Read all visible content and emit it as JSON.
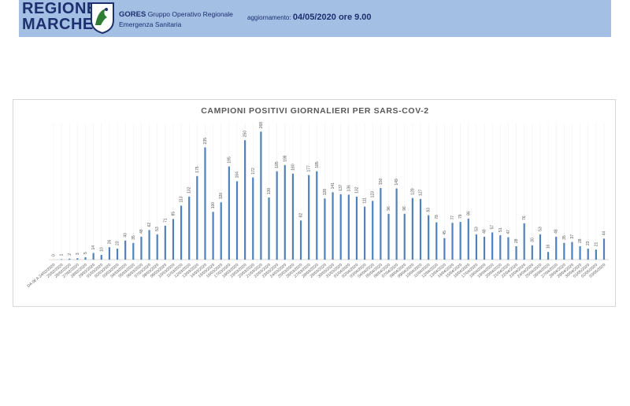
{
  "header": {
    "logo_line1": "REGIONE",
    "logo_line2": "MARCHE",
    "org_short": "GORES",
    "org_line1": "Gruppo Operativo Regionale",
    "org_line2": "Emergenza Sanitaria",
    "update_label": "aggiornamento:",
    "update_value": "04/05/2020 ore 9.00"
  },
  "colors": {
    "bar": "#4f81bd",
    "header_bg": "#a3bfe4",
    "logo": "#1d2f6e",
    "emblem": "#2e7d32"
  },
  "chart_data": {
    "type": "bar",
    "title": "CAMPIONI POSITIVI GIORNALIERI PER SARS-COV-2",
    "categories": [
      "DA 06 A 24/02/2020",
      "25/02/2020",
      "26/02/2020",
      "27/02/2020",
      "28/02/2020",
      "29/02/2020",
      "01/03/2020",
      "02/03/2020",
      "03/03/2020",
      "04/03/2020",
      "05/03/2020",
      "06/03/2020",
      "07/03/2020",
      "08/03/2020",
      "09/03/2020",
      "10/03/2020",
      "11/03/2020",
      "12/03/2020",
      "13/03/2020",
      "14/03/2020",
      "15/03/2020",
      "16/03/2020",
      "17/03/2020",
      "18/03/2020",
      "19/03/2020",
      "20/03/2020",
      "21/03/2020",
      "22/03/2020",
      "23/03/2020",
      "24/03/2020",
      "25/03/2020",
      "26/03/2020",
      "27/03/2020",
      "28/03/2020",
      "29/03/2020",
      "30/03/2020",
      "31/03/2020",
      "01/04/2020",
      "02/04/2020",
      "03/04/2020",
      "04/04/2020",
      "05/04/2020",
      "06/04/2020",
      "07/04/2020",
      "08/04/2020",
      "09/04/2020",
      "10/04/2020",
      "11/04/2020",
      "12/04/2020",
      "13/04/2020",
      "14/04/2020",
      "15/04/2020",
      "16/04/2020",
      "17/04/2020",
      "18/04/2020",
      "19/04/2020",
      "20/04/2020",
      "21/04/2020",
      "22/04/2020",
      "23/04/2020",
      "24/04/2020",
      "25/04/2020",
      "26/04/2020",
      "27/04/2020",
      "28/04/2020",
      "29/04/2020",
      "30/04/2020",
      "01/05/2020",
      "02/05/2020",
      "03/05/2020"
    ],
    "values": [
      0,
      1,
      2,
      3,
      5,
      14,
      10,
      26,
      23,
      40,
      35,
      48,
      62,
      53,
      71,
      85,
      113,
      132,
      175,
      235,
      100,
      120,
      195,
      164,
      250,
      172,
      268,
      130,
      185,
      198,
      180,
      82,
      177,
      185,
      128,
      141,
      137,
      136,
      132,
      111,
      123,
      150,
      96,
      149,
      96,
      129,
      127,
      93,
      78,
      45,
      77,
      79,
      86,
      53,
      48,
      57,
      51,
      47,
      28,
      76,
      30,
      53,
      16,
      48,
      35,
      37,
      28,
      23,
      21,
      44
    ],
    "ylim": [
      0,
      280
    ],
    "grid": false,
    "legend": "none"
  }
}
